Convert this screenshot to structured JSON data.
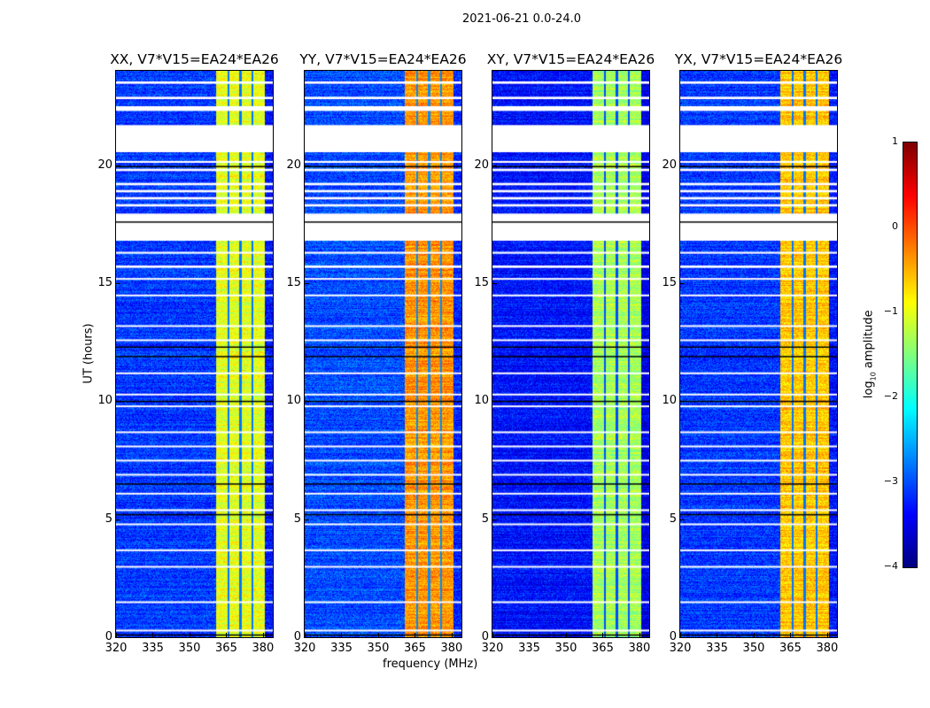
{
  "suptitle": "2021-06-21 0.0-24.0",
  "xlabel": "frequency (MHz)",
  "ylabel": "UT (hours)",
  "colorbar": {
    "label_prefix": "log",
    "label_sub": "10",
    "label_suffix": " amplitude",
    "ticks": [
      "1",
      "0",
      "−1",
      "−2",
      "−3",
      "−4"
    ],
    "tick_values": [
      1,
      0,
      -1,
      -2,
      -3,
      -4
    ],
    "range": [
      -4,
      1
    ],
    "colormap": "jet"
  },
  "chart_data": {
    "type": "heatmap",
    "title": "2021-06-21 0.0-24.0",
    "xlabel": "frequency (MHz)",
    "ylabel": "UT (hours)",
    "xlim": [
      320,
      384
    ],
    "ylim": [
      0,
      24
    ],
    "xticks": [
      "320",
      "335",
      "350",
      "365",
      "380"
    ],
    "xtick_values": [
      320,
      335,
      350,
      365,
      380
    ],
    "yticks": [
      "0",
      "5",
      "10",
      "15",
      "20"
    ],
    "ytick_values": [
      0,
      5,
      10,
      15,
      20
    ],
    "value_label": "log10 amplitude",
    "vlim": [
      -4,
      1
    ],
    "panels": [
      {
        "title": "XX, V7*V15=EA24*EA26",
        "background_level": -3.1,
        "band_level": -1.0
      },
      {
        "title": "YY, V7*V15=EA24*EA26",
        "background_level": -3.0,
        "band_level": -0.35
      },
      {
        "title": "XY, V7*V15=EA24*EA26",
        "background_level": -3.3,
        "band_level": -1.3
      },
      {
        "title": "YX, V7*V15=EA24*EA26",
        "background_level": -3.1,
        "band_level": -0.6
      }
    ],
    "rfi_band_mhz": [
      360.7,
      380.4
    ],
    "rfi_subband_gaps_mhz": [
      365.8,
      370.6,
      375.4
    ],
    "flagged_hours": [
      [
        23.45,
        23.55
      ],
      [
        22.8,
        22.9
      ],
      [
        22.3,
        22.5
      ],
      [
        20.55,
        21.7
      ],
      [
        20.1,
        20.18
      ],
      [
        19.75,
        19.85
      ],
      [
        19.15,
        19.25
      ],
      [
        18.85,
        18.95
      ],
      [
        18.55,
        18.65
      ],
      [
        18.25,
        18.35
      ],
      [
        16.8,
        17.95
      ],
      [
        16.25,
        16.33
      ],
      [
        15.65,
        15.75
      ],
      [
        15.15,
        15.22
      ],
      [
        14.45,
        14.52
      ],
      [
        13.15,
        13.22
      ],
      [
        12.55,
        12.62
      ],
      [
        11.15,
        11.22
      ],
      [
        10.25,
        10.32
      ],
      [
        9.75,
        9.82
      ],
      [
        8.65,
        8.72
      ],
      [
        8.05,
        8.12
      ],
      [
        7.45,
        7.52
      ],
      [
        6.85,
        6.92
      ],
      [
        6.05,
        6.12
      ],
      [
        5.35,
        5.42
      ],
      [
        4.75,
        4.82
      ],
      [
        3.65,
        3.72
      ],
      [
        2.95,
        3.02
      ],
      [
        1.45,
        1.52
      ],
      [
        0.25,
        0.32
      ]
    ],
    "dark_lines_hours": [
      17.6,
      19.95,
      12.3,
      11.9,
      10.0,
      6.5,
      5.2,
      0.1
    ]
  }
}
